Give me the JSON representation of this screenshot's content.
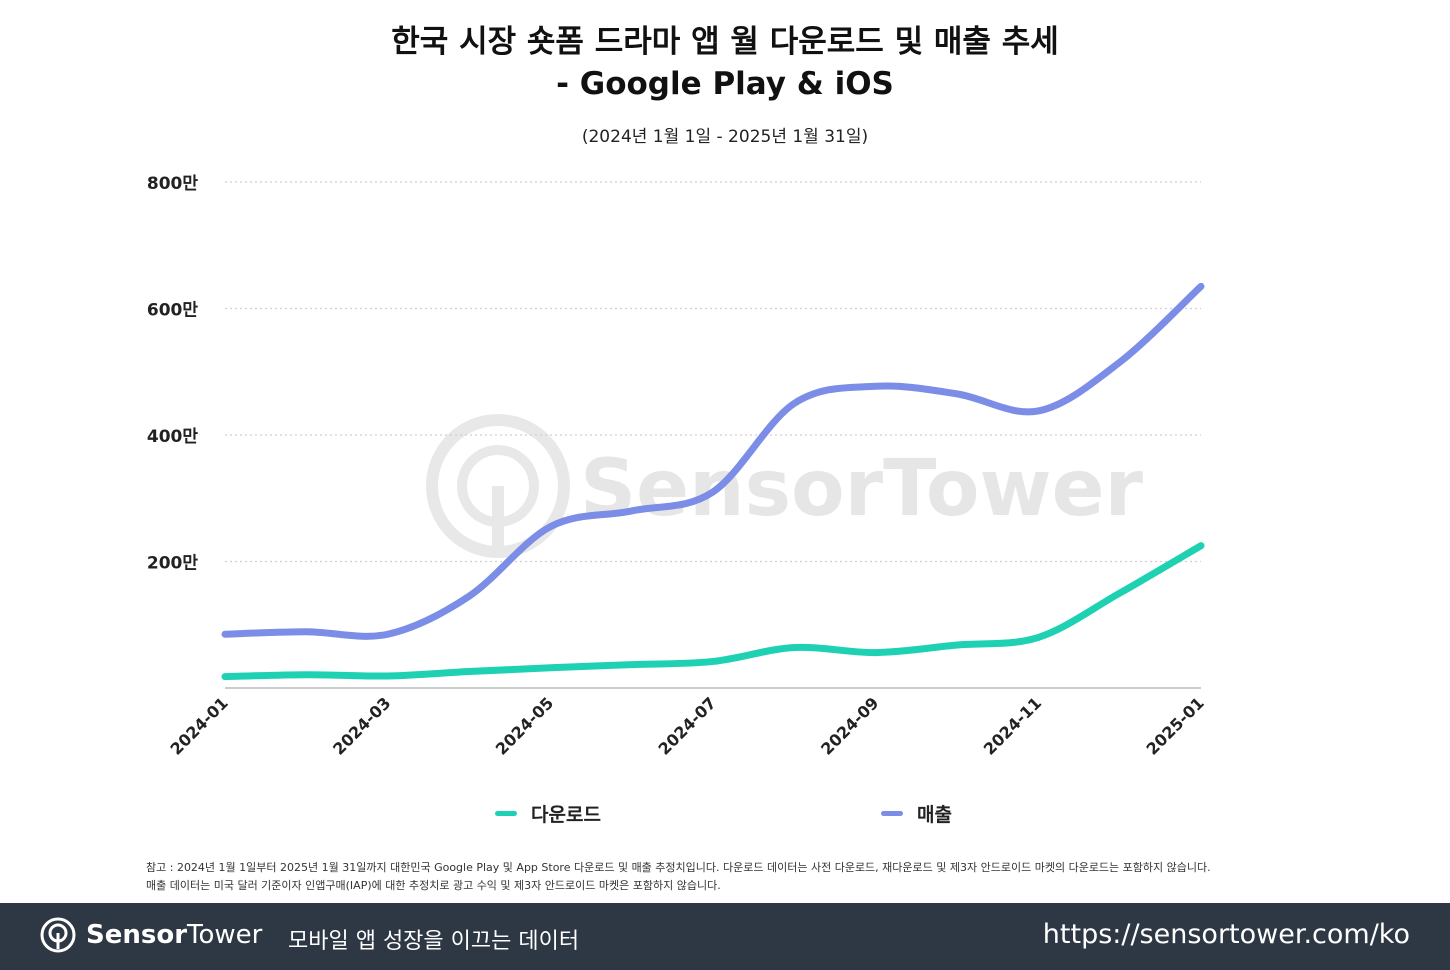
{
  "title_line1": "한국 시장 숏폼 드라마 앱 월 다운로드 및 매출 추세",
  "title_line2": "- Google Play & iOS",
  "subtitle": "(2024년 1월 1일 - 2025년 1월 31일)",
  "watermark": "SensorTower",
  "colors": {
    "downloads": "#1fd1b3",
    "revenue": "#7b8de6",
    "grid": "#cfcfcf",
    "footer_bg": "#2e3744"
  },
  "chart_data": {
    "type": "line",
    "x": [
      "2024-01",
      "2024-02",
      "2024-03",
      "2024-04",
      "2024-05",
      "2024-06",
      "2024-07",
      "2024-08",
      "2024-09",
      "2024-10",
      "2024-11",
      "2024-12",
      "2025-01"
    ],
    "x_tick_labels": [
      "2024-01",
      "2024-03",
      "2024-05",
      "2024-07",
      "2024-09",
      "2024-11",
      "2025-01"
    ],
    "y_tick_values": [
      2000000,
      4000000,
      6000000,
      8000000
    ],
    "y_tick_labels": [
      "200만",
      "400만",
      "600만",
      "800만"
    ],
    "ylim": [
      0,
      8000000
    ],
    "grid": true,
    "legend_position": "bottom",
    "series": [
      {
        "name": "다운로드",
        "values": [
          180000,
          210000,
          190000,
          260000,
          320000,
          370000,
          420000,
          640000,
          560000,
          680000,
          800000,
          1500000,
          2250000
        ]
      },
      {
        "name": "매출",
        "values": [
          850000,
          890000,
          850000,
          1450000,
          2550000,
          2800000,
          3100000,
          4500000,
          4770000,
          4650000,
          4380000,
          5150000,
          6350000
        ]
      }
    ]
  },
  "notes": {
    "line1": "참고 : 2024년 1월 1일부터 2025년 1월 31일까지 대한민국  Google Play 및 App Store  다운로드 및 매출 추정치입니다. 다운로드 데이터는 사전 다운로드, 재다운로드 및 제3자 안드로이드 마켓의 다운로드는 포함하지 않습니다.",
    "line2": "매출 데이터는 미국 달러 기준이자 인앱구매(IAP)에 대한 추정치로 광고 수익 및 제3자 안드로이드 마켓은 포함하지 않습니다."
  },
  "footer": {
    "brand_bold": "Sensor",
    "brand_light": "Tower",
    "tagline": "모바일 앱 성장을 이끄는 데이터",
    "url": "https://sensortower.com/ko"
  }
}
